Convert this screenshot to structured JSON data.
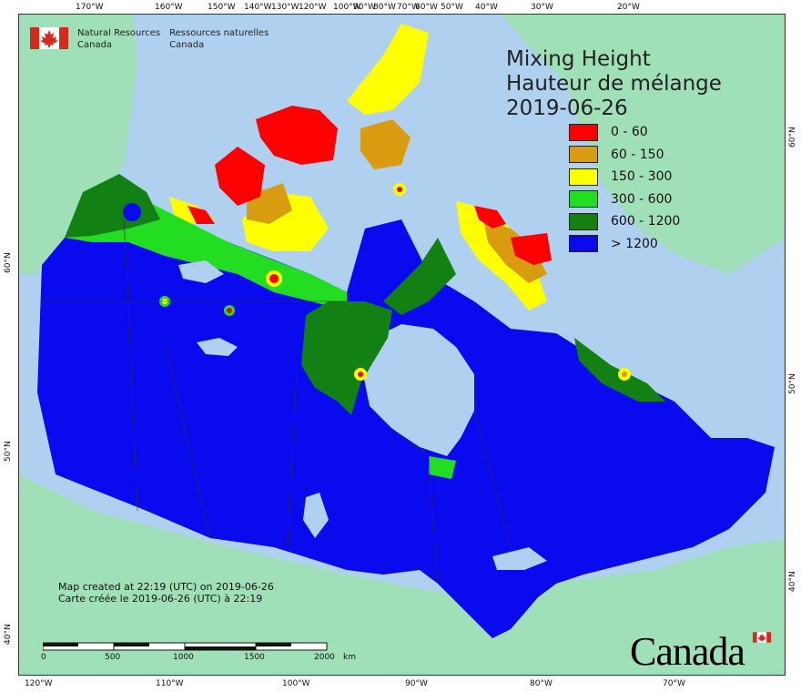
{
  "title": {
    "line1": "Mixing Height",
    "line2": "Hauteur de mélange",
    "date": "2019-06-26"
  },
  "legend": [
    {
      "label": "0 - 60",
      "color": "#ff0000"
    },
    {
      "label": "60 - 150",
      "color": "#d99c10"
    },
    {
      "label": "150 - 300",
      "color": "#ffff00"
    },
    {
      "label": "300 - 600",
      "color": "#22dd22"
    },
    {
      "label": "600 - 1200",
      "color": "#128012"
    },
    {
      "label": "> 1200",
      "color": "#0a0aee"
    }
  ],
  "logo": {
    "en_line1": "Natural Resources",
    "en_line2": "Canada",
    "fr_line1": "Ressources naturelles",
    "fr_line2": "Canada"
  },
  "credit": {
    "line1": "Map created at 22:19 (UTC) on 2019-06-26",
    "line2": "Carte créée le 2019-06-26 (UTC) à 22:19"
  },
  "scale_bar": {
    "labels": [
      "0",
      "500",
      "1000",
      "1500",
      "2000"
    ],
    "unit": "km"
  },
  "wordmark": "Canada",
  "colors": {
    "ocean": "#b0d0f0",
    "land": "#a0e0b8"
  },
  "top_ticks": [
    "170°W",
    "160°W",
    "150°W",
    "140°W",
    "130°W",
    "120°W",
    "100°W",
    "90°W",
    "80°W",
    "70°W",
    "60°W",
    "50°W",
    "40°W",
    "30°W",
    "20°W"
  ],
  "bottom_ticks": [
    "120°W",
    "110°W",
    "100°W",
    "90°W",
    "80°W",
    "70°W"
  ],
  "left_ticks": [
    "60°N",
    "50°N",
    "40°N"
  ],
  "right_ticks": [
    "60°N",
    "50°N",
    "40°N"
  ]
}
